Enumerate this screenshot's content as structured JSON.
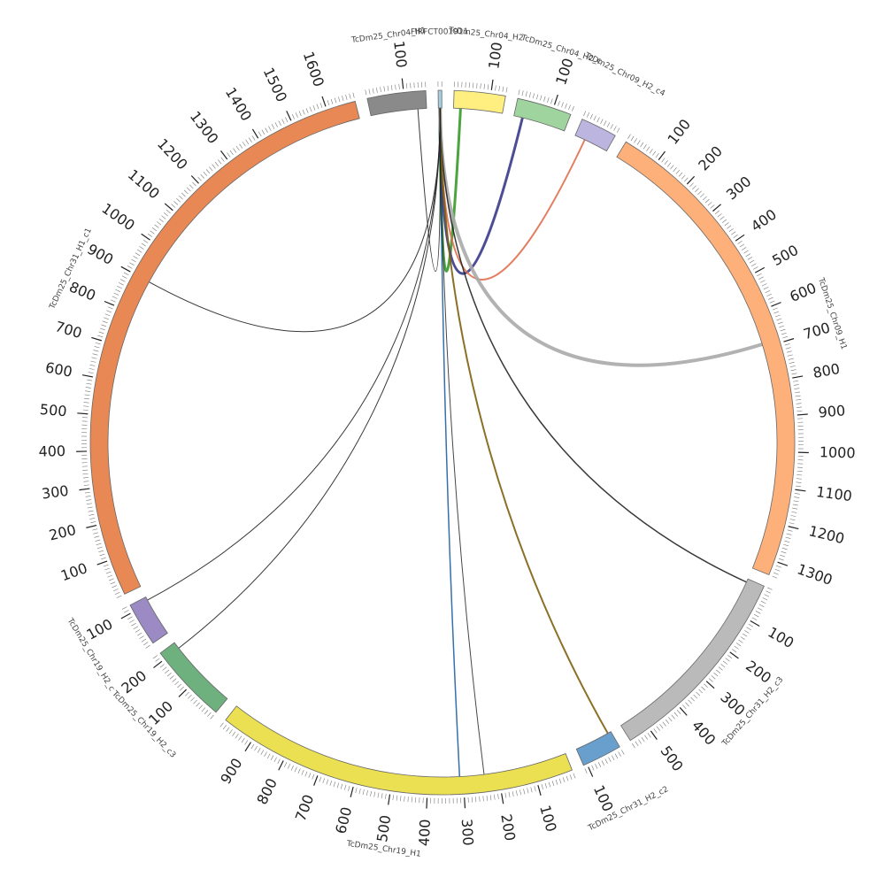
{
  "diagram": {
    "segments": [
      {
        "id": "ss",
        "label": "FIRFCT001911",
        "length": 10,
        "color": "#a6cee3",
        "ticks": []
      },
      {
        "id": "y4",
        "label": "TcDm25_Chr04_H2",
        "length": 140,
        "color": "#ffef80",
        "ticks": [
          {
            "v": 100,
            "t": "100"
          }
        ]
      },
      {
        "id": "g4",
        "label": "TcDm25_Chr04_H2_c",
        "length": 150,
        "color": "#9fd49f",
        "ticks": [
          {
            "v": 100,
            "t": "100"
          }
        ]
      },
      {
        "id": "l9",
        "label": "TcDm25_Chr09_H2_c4",
        "length": 100,
        "color": "#bbb5e0",
        "ticks": []
      },
      {
        "id": "c9",
        "label": "TcDm25_Chr09_H1",
        "length": 1340,
        "color": "#fdb07a",
        "ticks": [
          {
            "v": 100,
            "t": "100"
          },
          {
            "v": 200,
            "t": "200"
          },
          {
            "v": 300,
            "t": "300"
          },
          {
            "v": 400,
            "t": "400"
          },
          {
            "v": 500,
            "t": "500"
          },
          {
            "v": 600,
            "t": "600"
          },
          {
            "v": 700,
            "t": "700"
          },
          {
            "v": 800,
            "t": "800"
          },
          {
            "v": 900,
            "t": "900"
          },
          {
            "v": 1000,
            "t": "1000"
          },
          {
            "v": 1100,
            "t": "1100"
          },
          {
            "v": 1200,
            "t": "1200"
          },
          {
            "v": 1300,
            "t": "1300"
          }
        ]
      },
      {
        "id": "c31c3",
        "label": "TcDm25_Chr31_H2_c3",
        "length": 560,
        "color": "#bababa",
        "ticks": [
          {
            "v": 100,
            "t": "100"
          },
          {
            "v": 200,
            "t": "200"
          },
          {
            "v": 300,
            "t": "300"
          },
          {
            "v": 400,
            "t": "400"
          },
          {
            "v": 500,
            "t": "500"
          }
        ]
      },
      {
        "id": "c31c2",
        "label": "TcDm25_Chr31_H2_c2",
        "length": 110,
        "color": "#699fcd",
        "ticks": [
          {
            "v": 100,
            "t": "100"
          }
        ]
      },
      {
        "id": "c19h1",
        "label": "TcDm25_Chr19_H1",
        "length": 990,
        "color": "#ebdf52",
        "ticks": [
          {
            "v": 100,
            "t": "100"
          },
          {
            "v": 200,
            "t": "200"
          },
          {
            "v": 300,
            "t": "300"
          },
          {
            "v": 400,
            "t": "400"
          },
          {
            "v": 500,
            "t": "500"
          },
          {
            "v": 600,
            "t": "600"
          },
          {
            "v": 700,
            "t": "700"
          },
          {
            "v": 800,
            "t": "800"
          },
          {
            "v": 900,
            "t": "900"
          }
        ]
      },
      {
        "id": "c19c3",
        "label": "TcDm25_Chr19_H2_c3",
        "length": 220,
        "color": "#6fb07f",
        "ticks": [
          {
            "v": 100,
            "t": "100"
          },
          {
            "v": 200,
            "t": "200"
          }
        ]
      },
      {
        "id": "c19c",
        "label": "TcDm25_Chr19_H2_c",
        "length": 120,
        "color": "#9b8ac4",
        "ticks": [
          {
            "v": 100,
            "t": "100"
          }
        ]
      },
      {
        "id": "c31h1",
        "label": "TcDm25_Chr31_H1_c1",
        "length": 1680,
        "color": "#e78855",
        "ticks": [
          {
            "v": 100,
            "t": "100"
          },
          {
            "v": 200,
            "t": "200"
          },
          {
            "v": 300,
            "t": "300"
          },
          {
            "v": 400,
            "t": "400"
          },
          {
            "v": 500,
            "t": "500"
          },
          {
            "v": 600,
            "t": "600"
          },
          {
            "v": 700,
            "t": "700"
          },
          {
            "v": 800,
            "t": "800"
          },
          {
            "v": 900,
            "t": "900"
          },
          {
            "v": 1000,
            "t": "1000"
          },
          {
            "v": 1100,
            "t": "1100"
          },
          {
            "v": 1200,
            "t": "1200"
          },
          {
            "v": 1300,
            "t": "1300"
          },
          {
            "v": 1400,
            "t": "1400"
          },
          {
            "v": 1500,
            "t": "1500"
          },
          {
            "v": 1600,
            "t": "1600"
          }
        ]
      },
      {
        "id": "gr4",
        "label": "TcDm25_Chr04_H1",
        "length": 160,
        "color": "#8a8a8a",
        "ticks": [
          {
            "v": 100,
            "t": "100"
          }
        ]
      }
    ],
    "links": [
      {
        "from": "ss",
        "a": 4,
        "to": "y4",
        "b": 20,
        "color": "#3a9a2a",
        "w": 3
      },
      {
        "from": "ss",
        "a": 4,
        "to": "g4",
        "b": 25,
        "color": "#3a3a8a",
        "w": 3
      },
      {
        "from": "ss",
        "a": 4,
        "to": "l9",
        "b": 30,
        "color": "#e07050",
        "w": 2
      },
      {
        "from": "ss",
        "a": 5,
        "to": "c9",
        "b": 690,
        "color": "#aaaaaa",
        "w": 4
      },
      {
        "from": "ss",
        "a": 5,
        "to": "c31c3",
        "b": 10,
        "color": "#222222",
        "w": 1.5
      },
      {
        "from": "ss",
        "a": 5,
        "to": "c31c2",
        "b": 10,
        "color": "#806010",
        "w": 2
      },
      {
        "from": "ss",
        "a": 5,
        "to": "c19h1",
        "b": 310,
        "color": "#2060a0",
        "w": 1.5
      },
      {
        "from": "ss",
        "a": 5,
        "to": "c19h1",
        "b": 240,
        "color": "#333333",
        "w": 1
      },
      {
        "from": "ss",
        "a": 5,
        "to": "c19c3",
        "b": 200,
        "color": "#222222",
        "w": 1
      },
      {
        "from": "ss",
        "a": 5,
        "to": "c19c",
        "b": 110,
        "color": "#222222",
        "w": 1
      },
      {
        "from": "ss",
        "a": 5,
        "to": "c31h1",
        "b": 900,
        "color": "#222222",
        "w": 1
      },
      {
        "from": "ss",
        "a": 5,
        "to": "gr4",
        "b": 135,
        "color": "#222222",
        "w": 1
      }
    ]
  }
}
